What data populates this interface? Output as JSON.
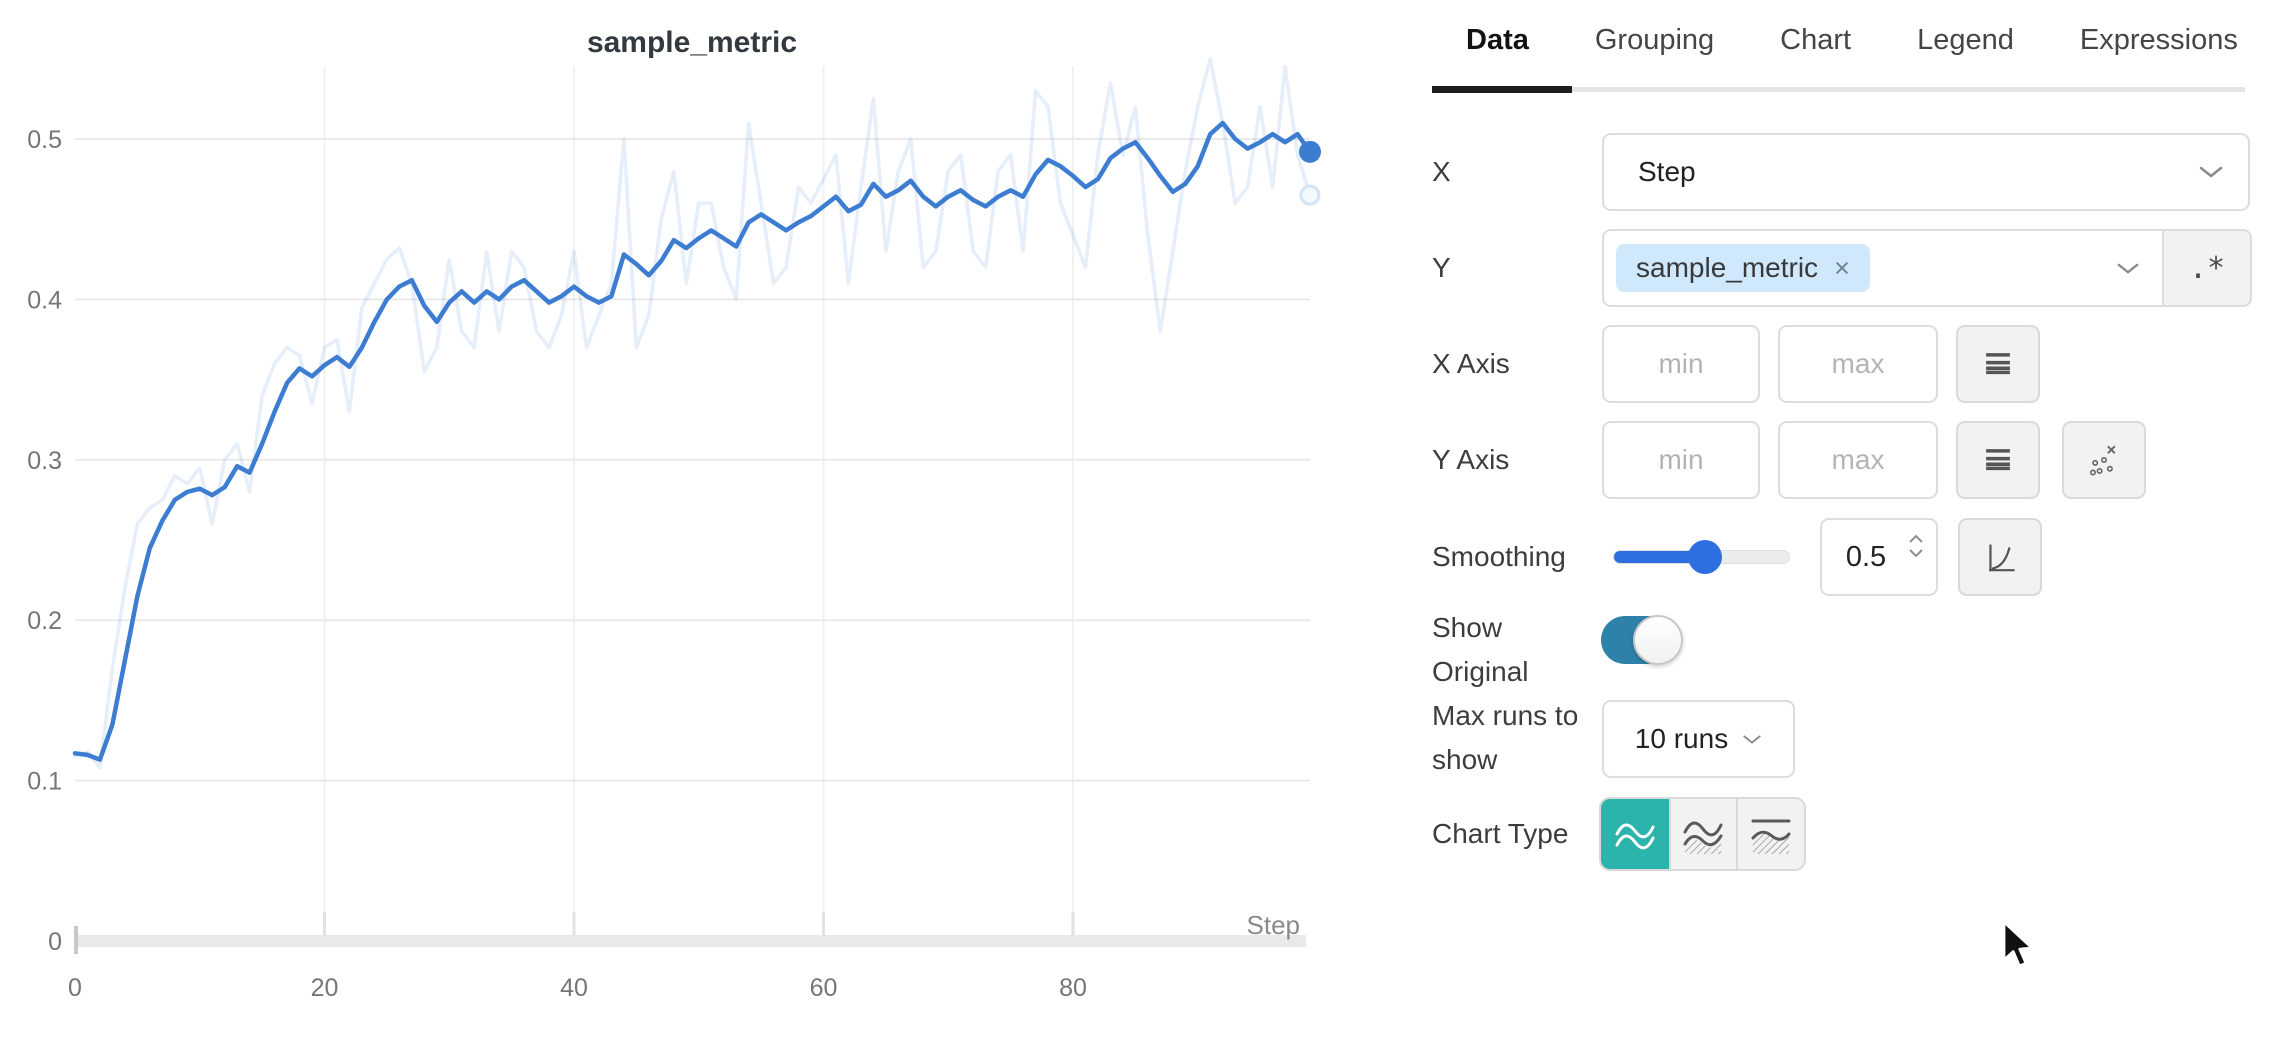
{
  "chart": {
    "title": "sample_metric",
    "x_axis_label": "Step",
    "y_ticks": [
      {
        "v": 0.0,
        "label": "0"
      },
      {
        "v": 0.1,
        "label": "0.1"
      },
      {
        "v": 0.2,
        "label": "0.2"
      },
      {
        "v": 0.3,
        "label": "0.3"
      },
      {
        "v": 0.4,
        "label": "0.4"
      },
      {
        "v": 0.5,
        "label": "0.5"
      }
    ],
    "x_ticks": [
      {
        "v": 0,
        "label": "0"
      },
      {
        "v": 20,
        "label": "20"
      },
      {
        "v": 40,
        "label": "40"
      },
      {
        "v": 60,
        "label": "60"
      },
      {
        "v": 80,
        "label": "80"
      }
    ]
  },
  "chart_data": {
    "type": "line",
    "title": "sample_metric",
    "xlabel": "Step",
    "ylabel": "",
    "x_min": 0,
    "x_max": 99,
    "x_step": 1,
    "ylim": [
      0,
      0.55
    ],
    "grid": true,
    "legend_position": "none",
    "series": [
      {
        "name": "sample_metric (smoothed, 0.5)",
        "color": "#3d7dd1",
        "opacity": 1,
        "end_dot": true,
        "values": [
          0.117,
          0.116,
          0.113,
          0.135,
          0.175,
          0.215,
          0.245,
          0.262,
          0.275,
          0.28,
          0.282,
          0.278,
          0.283,
          0.296,
          0.292,
          0.31,
          0.33,
          0.348,
          0.357,
          0.352,
          0.359,
          0.364,
          0.358,
          0.37,
          0.386,
          0.4,
          0.408,
          0.412,
          0.396,
          0.386,
          0.398,
          0.405,
          0.398,
          0.405,
          0.4,
          0.408,
          0.412,
          0.405,
          0.398,
          0.402,
          0.408,
          0.402,
          0.398,
          0.402,
          0.428,
          0.422,
          0.415,
          0.424,
          0.437,
          0.432,
          0.438,
          0.443,
          0.438,
          0.433,
          0.448,
          0.453,
          0.448,
          0.443,
          0.448,
          0.452,
          0.458,
          0.464,
          0.455,
          0.459,
          0.472,
          0.464,
          0.468,
          0.474,
          0.464,
          0.458,
          0.464,
          0.468,
          0.462,
          0.458,
          0.464,
          0.468,
          0.464,
          0.478,
          0.487,
          0.483,
          0.477,
          0.47,
          0.475,
          0.488,
          0.494,
          0.498,
          0.488,
          0.477,
          0.467,
          0.472,
          0.483,
          0.503,
          0.51,
          0.5,
          0.494,
          0.498,
          0.503,
          0.498,
          0.503,
          0.492
        ]
      },
      {
        "name": "sample_metric (original)",
        "color": "#3d7dd1",
        "opacity": 0.13,
        "end_dot": true,
        "values": [
          0.115,
          0.118,
          0.108,
          0.17,
          0.22,
          0.26,
          0.27,
          0.275,
          0.29,
          0.285,
          0.295,
          0.26,
          0.3,
          0.31,
          0.28,
          0.34,
          0.36,
          0.37,
          0.365,
          0.335,
          0.37,
          0.375,
          0.33,
          0.395,
          0.41,
          0.425,
          0.432,
          0.41,
          0.355,
          0.37,
          0.425,
          0.38,
          0.37,
          0.43,
          0.38,
          0.43,
          0.42,
          0.38,
          0.37,
          0.39,
          0.43,
          0.37,
          0.39,
          0.41,
          0.5,
          0.37,
          0.39,
          0.45,
          0.48,
          0.41,
          0.46,
          0.46,
          0.42,
          0.4,
          0.51,
          0.46,
          0.41,
          0.42,
          0.47,
          0.46,
          0.475,
          0.49,
          0.41,
          0.47,
          0.525,
          0.43,
          0.48,
          0.5,
          0.42,
          0.43,
          0.48,
          0.49,
          0.43,
          0.42,
          0.48,
          0.49,
          0.43,
          0.53,
          0.52,
          0.46,
          0.44,
          0.42,
          0.49,
          0.535,
          0.49,
          0.52,
          0.44,
          0.38,
          0.43,
          0.48,
          0.52,
          0.55,
          0.51,
          0.46,
          0.47,
          0.52,
          0.47,
          0.545,
          0.49,
          0.465
        ]
      }
    ]
  },
  "panel": {
    "tabs": [
      {
        "label": "Data",
        "active": true
      },
      {
        "label": "Grouping",
        "active": false
      },
      {
        "label": "Chart",
        "active": false
      },
      {
        "label": "Legend",
        "active": false
      },
      {
        "label": "Expressions",
        "active": false
      }
    ],
    "rows": {
      "x": {
        "label": "X",
        "value": "Step"
      },
      "y": {
        "label": "Y",
        "tag": "sample_metric",
        "remove_label": "×",
        "regex_button": ".*"
      },
      "x_axis": {
        "label": "X Axis",
        "min_placeholder": "min",
        "max_placeholder": "max"
      },
      "y_axis": {
        "label": "Y Axis",
        "min_placeholder": "min",
        "max_placeholder": "max"
      },
      "smoothing": {
        "label": "Smoothing",
        "value": "0.5"
      },
      "show_original": {
        "label": "Show Original",
        "state": "on"
      },
      "max_runs": {
        "label": "Max runs to show",
        "value": "10 runs"
      },
      "chart_type": {
        "label": "Chart Type",
        "selected_index": 0
      }
    }
  },
  "colors": {
    "line_blue": "#3d7dd1",
    "slider_blue": "#2e6fe0",
    "tag_bg": "#cfe8fb",
    "toggle_on": "#2e81a8",
    "chart_type_active": "#2ab4ab",
    "grid_line": "#eaeaea",
    "axis_band": "#e9e9e9",
    "tick_text": "#767676"
  }
}
